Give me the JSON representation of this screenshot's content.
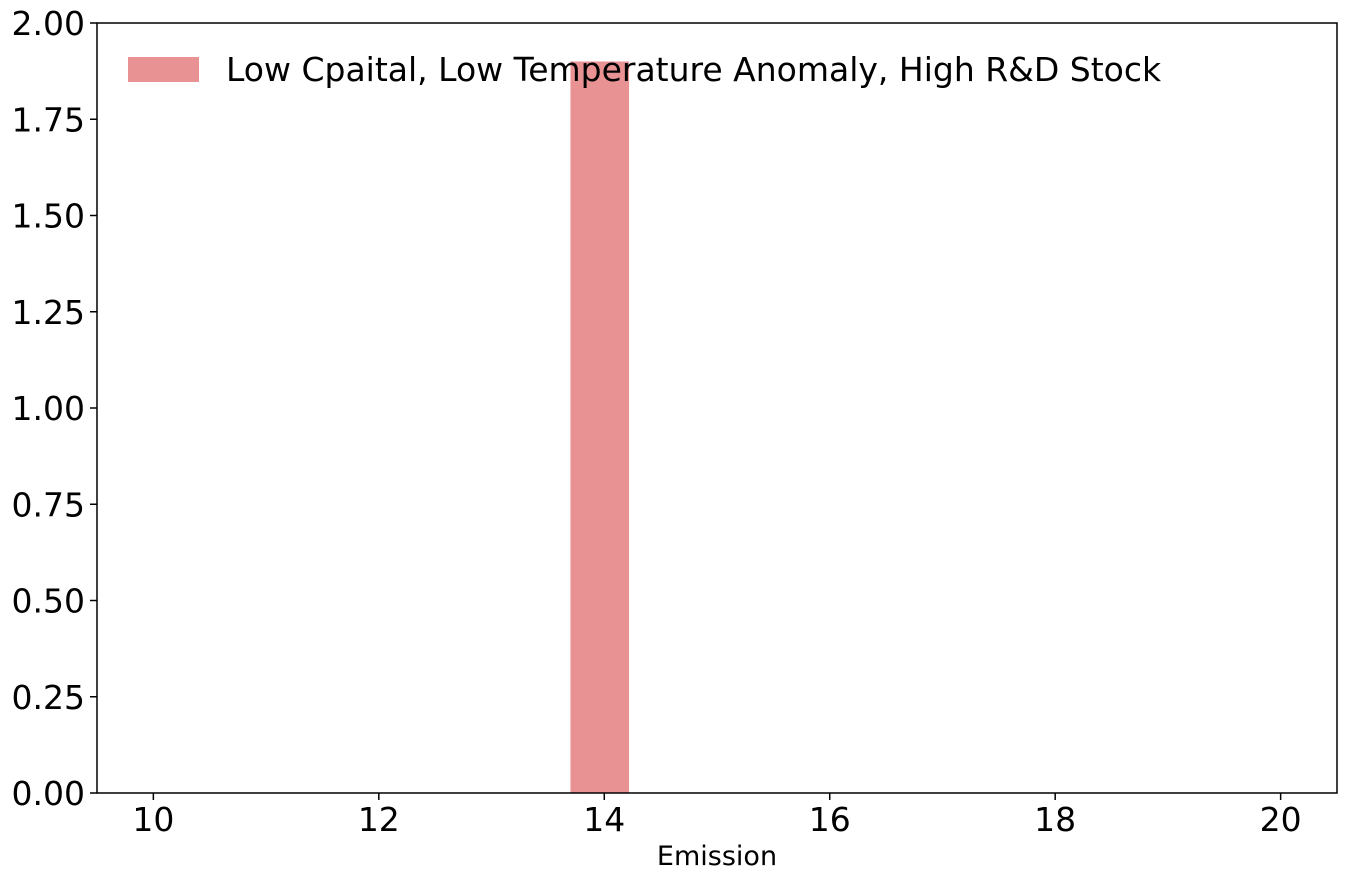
{
  "chart_data": {
    "type": "bar",
    "title": "",
    "xlabel": "Emission",
    "ylabel": "",
    "xlim": [
      9.5,
      20.5
    ],
    "ylim": [
      0,
      2.0
    ],
    "xticks": [
      "10",
      "12",
      "14",
      "16",
      "18",
      "20"
    ],
    "yticks": [
      "0.00",
      "0.25",
      "0.50",
      "0.75",
      "1.00",
      "1.25",
      "1.50",
      "1.75",
      "2.00"
    ],
    "legend": "top-left",
    "grid": false,
    "series": [
      {
        "name": "Low Cpaital, Low Temperature Anomaly, High R&D Stock",
        "color": "#e99294",
        "bars": [
          {
            "x_start": 13.7,
            "x_end": 14.22,
            "value": 1.9
          }
        ]
      }
    ]
  }
}
